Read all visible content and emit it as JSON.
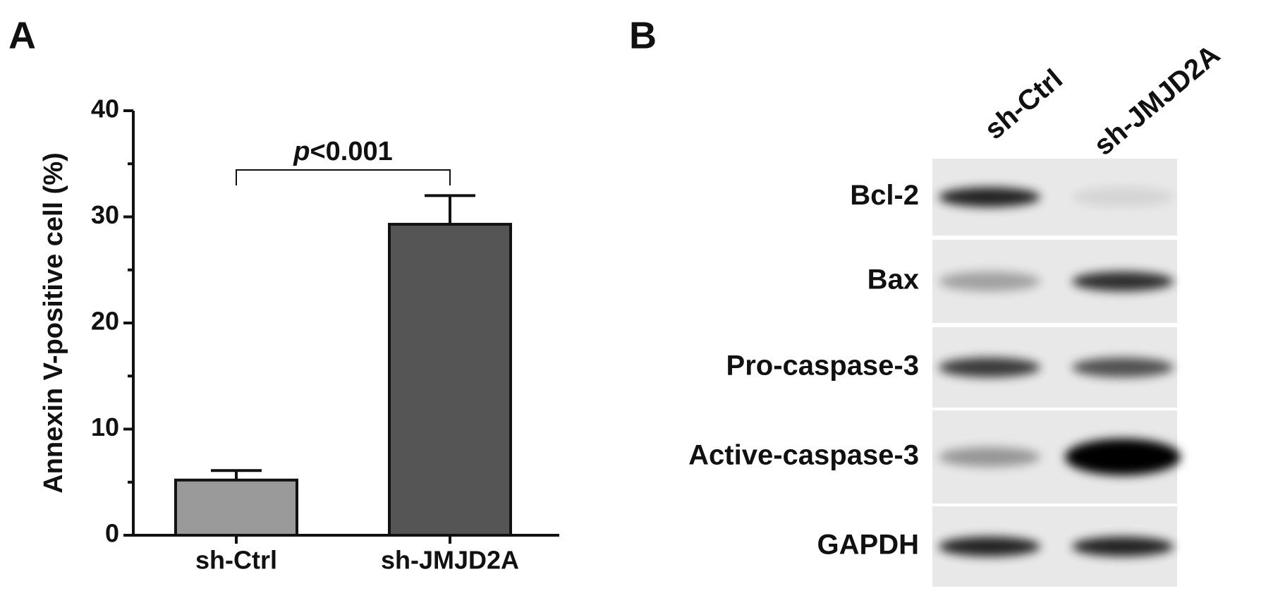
{
  "panel_labels": [
    "A",
    "B"
  ],
  "chart_data": {
    "type": "bar",
    "ylabel": "Annexin V-positive cell (%)",
    "categories": [
      "sh-Ctrl",
      "sh-JMJD2A"
    ],
    "values": [
      5.2,
      29.3
    ],
    "errors": [
      0.9,
      2.7
    ],
    "colors": [
      "#9a9a9a",
      "#555555"
    ],
    "ylim": [
      0,
      40
    ],
    "yticks": [
      0,
      10,
      20,
      30,
      40
    ],
    "yticks_minor": [
      5,
      15,
      25,
      35
    ],
    "annotation": {
      "italic": "p",
      "text": "<0.001"
    }
  },
  "blot": {
    "lanes": [
      "sh-Ctrl",
      "sh-JMJD2A"
    ],
    "rows": [
      "Bcl-2",
      "Bax",
      "Pro-caspase-3",
      "Active-caspase-3",
      "GAPDH"
    ]
  }
}
